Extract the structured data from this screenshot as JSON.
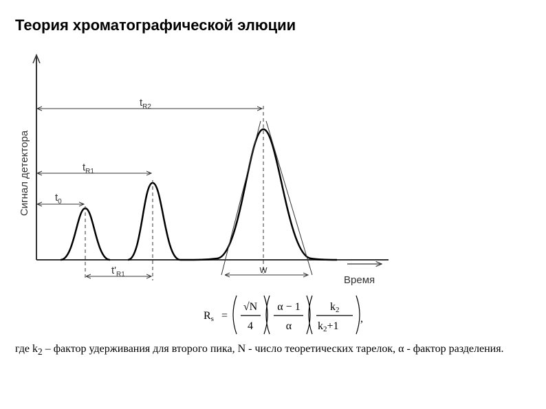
{
  "title": "Теория хроматографической элюции",
  "diagram": {
    "y_axis_label": "Сигнал детектора",
    "x_axis_label": "Время",
    "labels": {
      "t_r2": {
        "main": "t",
        "sub": "R2"
      },
      "t_r1": {
        "main": "t",
        "sub": "R1"
      },
      "t_0": {
        "main": "t",
        "sub": "0"
      },
      "t_prime_r1": {
        "main": "t'",
        "sub": "R1"
      },
      "w": "w"
    }
  },
  "formula": {
    "lhs": "R",
    "lhs_sub": "s",
    "eq": "=",
    "f1_num": "√N",
    "f1_den": "4",
    "f2_num": "α − 1",
    "f2_den": "α",
    "f3_num": "k",
    "f3_num_sub": "2",
    "f3_den": "k",
    "f3_den_sub": "2",
    "f3_den_rest": "+1",
    "trail": ","
  },
  "paragraph": {
    "p1": "где k",
    "p1_sub": "2",
    "p2": " – фактор удерживания для второго пика, N - число теоретических тарелок, α - фактор разделения."
  }
}
